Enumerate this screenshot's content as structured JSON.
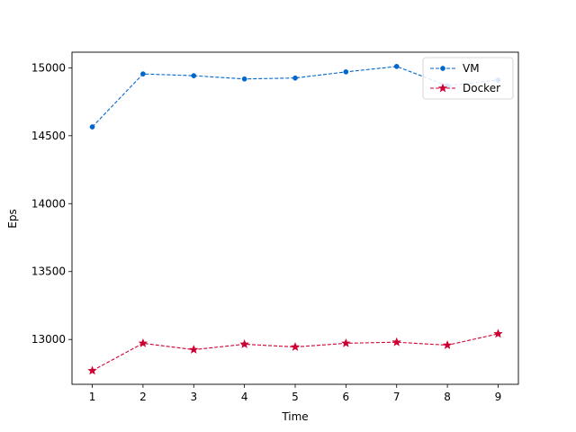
{
  "chart_data": {
    "type": "line",
    "x": [
      1,
      2,
      3,
      4,
      5,
      6,
      7,
      8,
      9
    ],
    "xlabel": "Time",
    "ylabel": "Eps",
    "xlim": [
      0.6,
      9.4
    ],
    "ylim": [
      12670,
      15115
    ],
    "xticks": [
      "1",
      "2",
      "3",
      "4",
      "5",
      "6",
      "7",
      "8",
      "9"
    ],
    "yticks": [
      "13000",
      "13500",
      "14000",
      "14500",
      "15000"
    ],
    "grid": false,
    "legend": "top-right",
    "series": [
      {
        "name": "VM",
        "color": "#0066cc",
        "marker": "circle",
        "linestyle": "dashed",
        "values": [
          14565,
          14955,
          14942,
          14918,
          14925,
          14970,
          15010,
          14868,
          14910
        ]
      },
      {
        "name": "Docker",
        "color": "#cc0033",
        "marker": "star",
        "linestyle": "dashed",
        "values": [
          12770,
          12972,
          12925,
          12965,
          12945,
          12972,
          12980,
          12958,
          13042
        ]
      }
    ]
  }
}
